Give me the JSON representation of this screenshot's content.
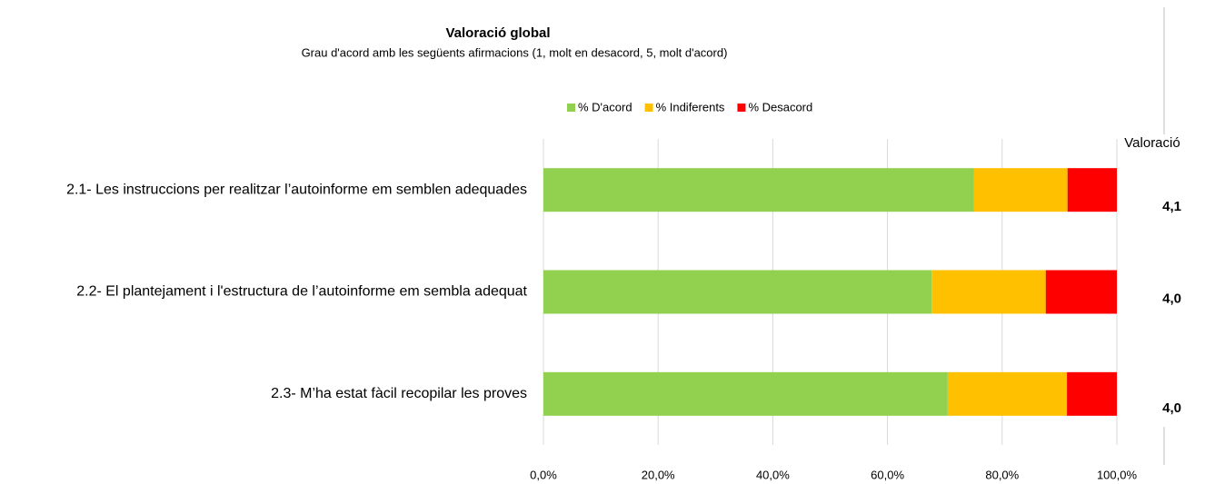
{
  "chart_data": {
    "type": "stacked_barh",
    "title": "Valoració global",
    "subtitle": "Grau d'acord amb les següents afirmacions (1, molt en desacord, 5, molt d'acord)",
    "categories": [
      "2.1- Les instruccions per realitzar l’autoinforme em semblen adequades",
      "2.2- El plantejament i l'estructura de l’autoinforme em sembla adequat",
      "2.3- M’ha estat fàcil recopilar les proves"
    ],
    "series": [
      {
        "name": "% D'acord",
        "color": "#92d050",
        "values": [
          75.1,
          67.7,
          70.5
        ]
      },
      {
        "name": "% Indiferents",
        "color": "#ffc000",
        "values": [
          16.3,
          19.9,
          20.8
        ]
      },
      {
        "name": "% Desacord",
        "color": "#ff0000",
        "values": [
          8.6,
          12.4,
          8.7
        ]
      }
    ],
    "xlim": [
      0,
      100
    ],
    "xticks": [
      {
        "value": 0,
        "label": "0,0%"
      },
      {
        "value": 20,
        "label": "20,0%"
      },
      {
        "value": 40,
        "label": "40,0%"
      },
      {
        "value": 60,
        "label": "60,0%"
      },
      {
        "value": 80,
        "label": "80,0%"
      },
      {
        "value": 100,
        "label": "100,0%"
      }
    ],
    "grid": true,
    "legend": "top",
    "ratings_header": "Valoració",
    "ratings": [
      "4,1",
      "4,0",
      "4,0"
    ]
  }
}
